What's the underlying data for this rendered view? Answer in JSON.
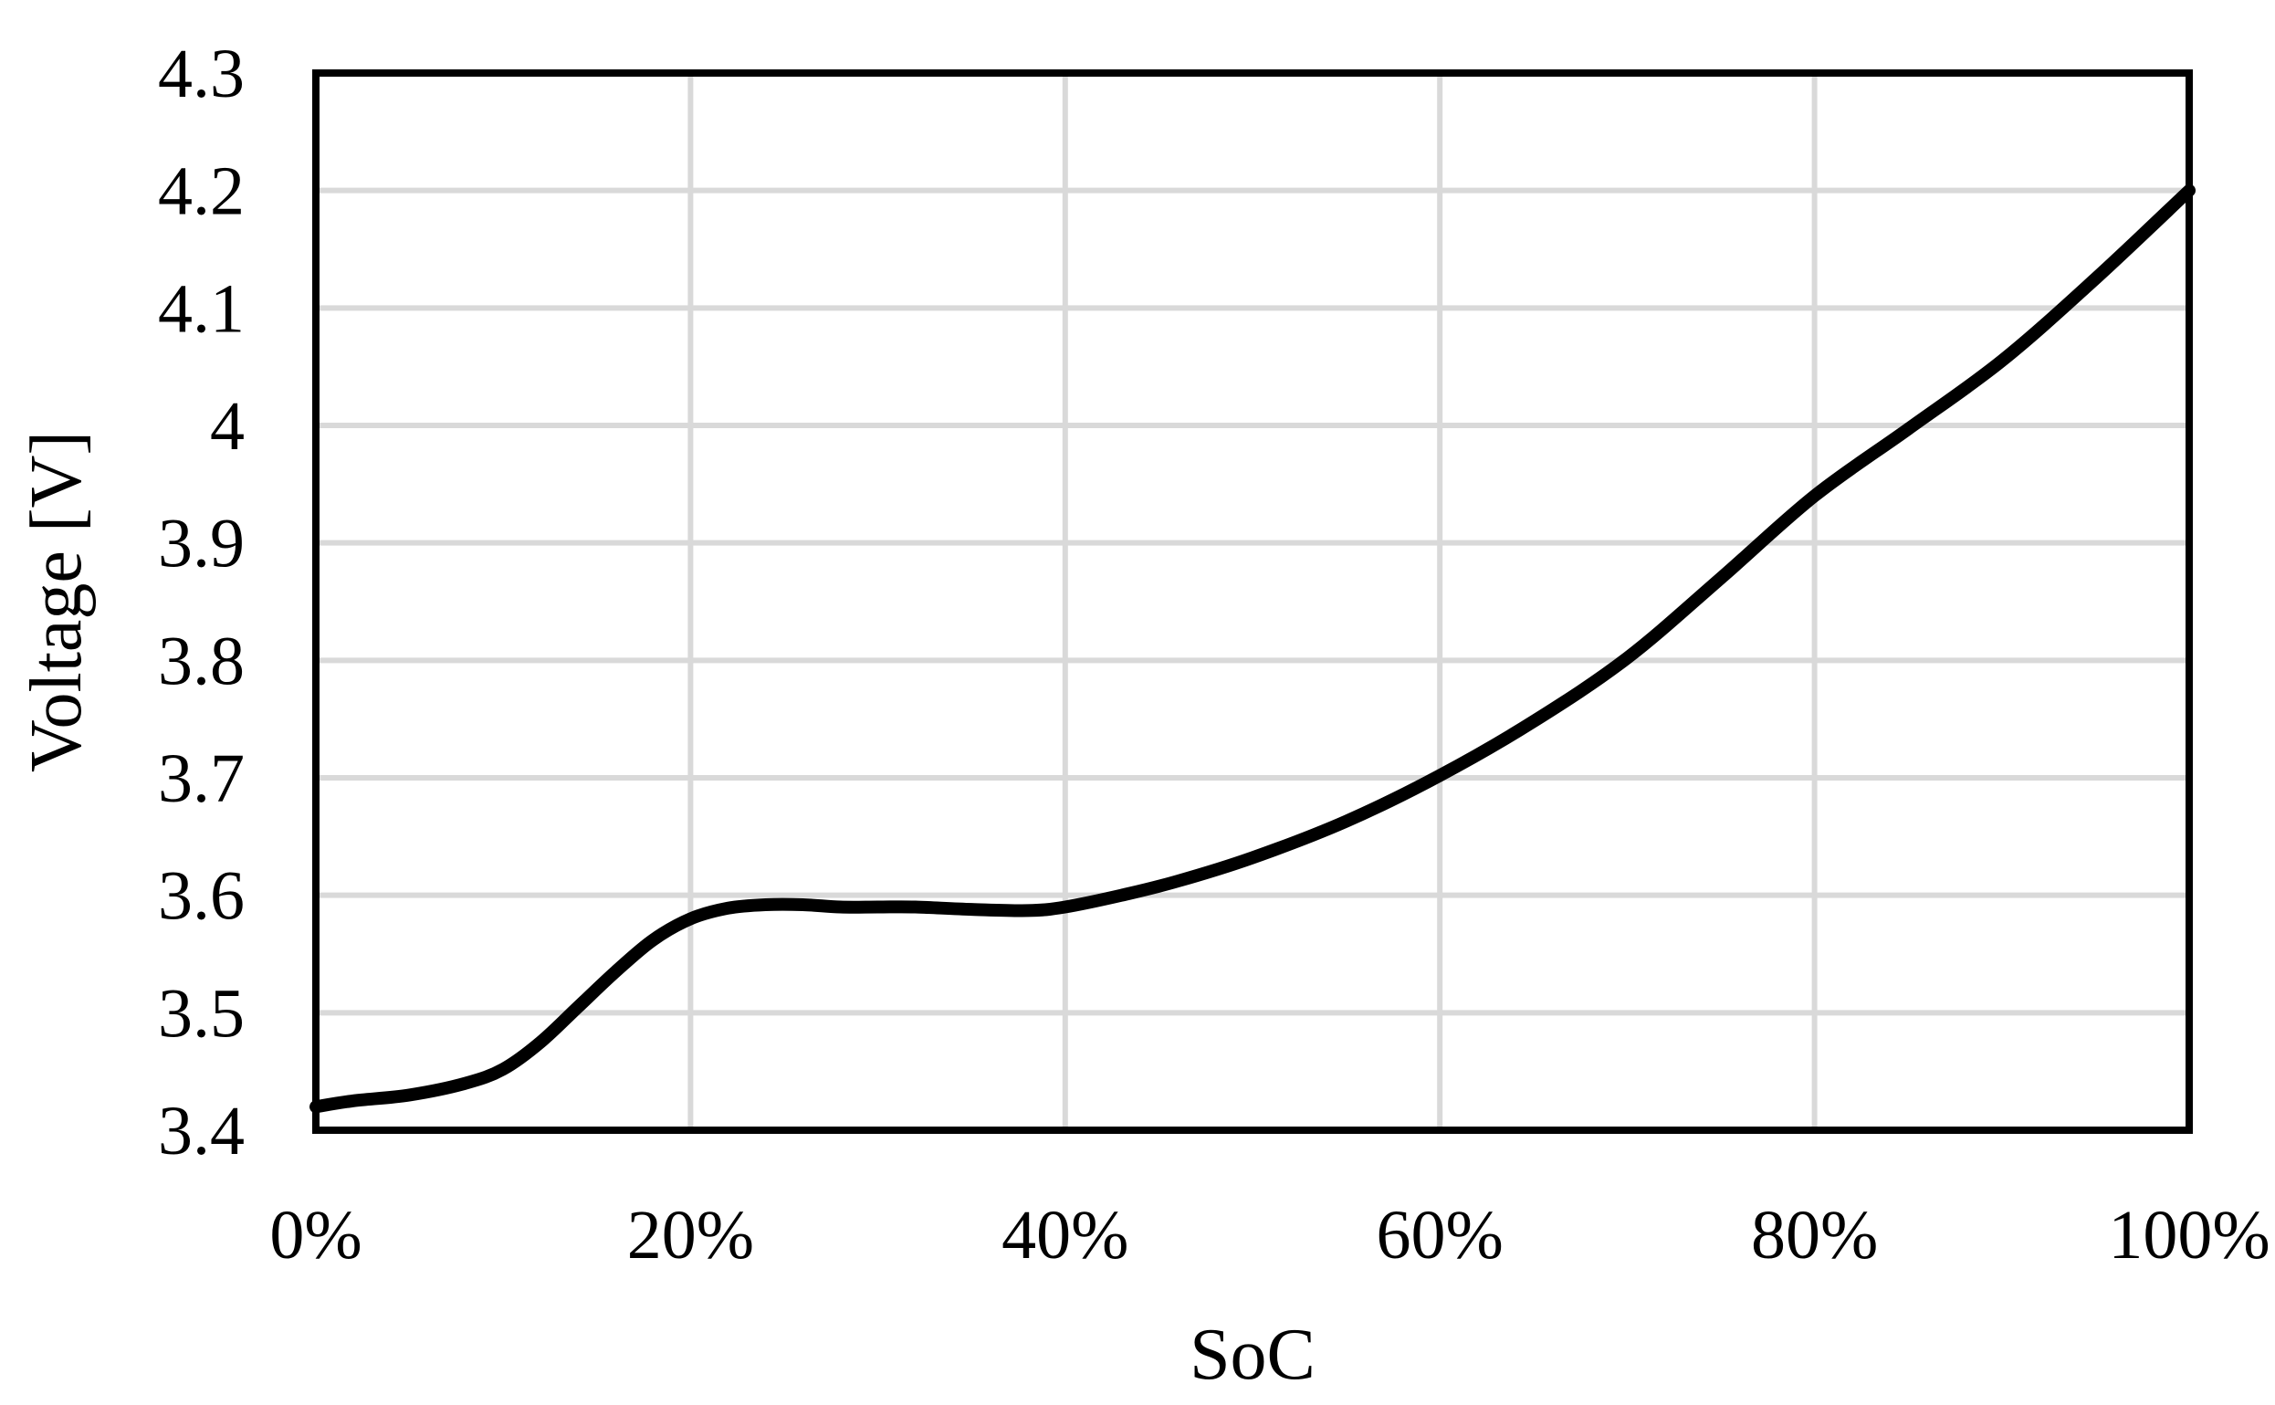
{
  "chart_data": {
    "type": "line",
    "title": "",
    "xlabel": "SoC",
    "ylabel": "Voltage [V]",
    "xlim": [
      0,
      100
    ],
    "ylim": [
      3.4,
      4.3
    ],
    "x_ticks": [
      0,
      20,
      40,
      60,
      80,
      100
    ],
    "x_tick_labels": [
      "0%",
      "20%",
      "40%",
      "60%",
      "80%",
      "100%"
    ],
    "y_ticks": [
      3.4,
      3.5,
      3.6,
      3.7,
      3.8,
      3.9,
      4.0,
      4.1,
      4.2,
      4.3
    ],
    "y_tick_labels": [
      "3.4",
      "3.5",
      "3.6",
      "3.7",
      "3.8",
      "3.9",
      "4",
      "4.1",
      "4.2",
      "4.3"
    ],
    "grid": true,
    "legend": "none",
    "series": [
      {
        "color": "#000000",
        "x": [
          0,
          2,
          5,
          8,
          10,
          12,
          14,
          16,
          18,
          20,
          22,
          24,
          26,
          28,
          30,
          32,
          35,
          38,
          40,
          43,
          46,
          50,
          55,
          60,
          65,
          70,
          75,
          80,
          85,
          90,
          95,
          100
        ],
        "y": [
          3.42,
          3.425,
          3.43,
          3.44,
          3.452,
          3.475,
          3.505,
          3.535,
          3.562,
          3.58,
          3.589,
          3.592,
          3.592,
          3.59,
          3.59,
          3.59,
          3.588,
          3.587,
          3.59,
          3.6,
          3.612,
          3.632,
          3.663,
          3.702,
          3.748,
          3.802,
          3.87,
          3.94,
          3.997,
          4.055,
          4.125,
          4.2
        ]
      }
    ]
  }
}
